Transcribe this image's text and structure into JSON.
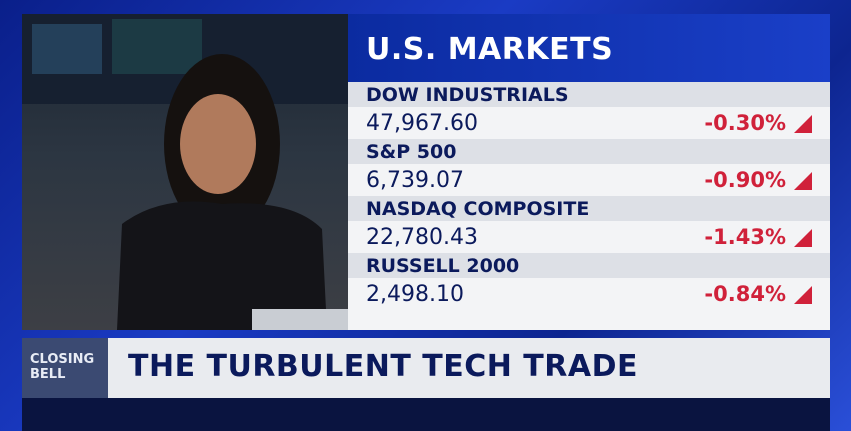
{
  "panel": {
    "title": "U.S. MARKETS",
    "rows": [
      {
        "name": "DOW INDUSTRIALS",
        "value": "47,967.60",
        "change": "-0.30%"
      },
      {
        "name": "S&P 500",
        "value": "6,739.07",
        "change": "-0.90%"
      },
      {
        "name": "NASDAQ COMPOSITE",
        "value": "22,780.43",
        "change": "-1.43%"
      },
      {
        "name": "RUSSELL 2000",
        "value": "2,498.10",
        "change": "-0.84%"
      }
    ]
  },
  "lower_third": {
    "show": "CLOSING BELL",
    "headline": "THE TURBULENT TECH TRADE"
  }
}
